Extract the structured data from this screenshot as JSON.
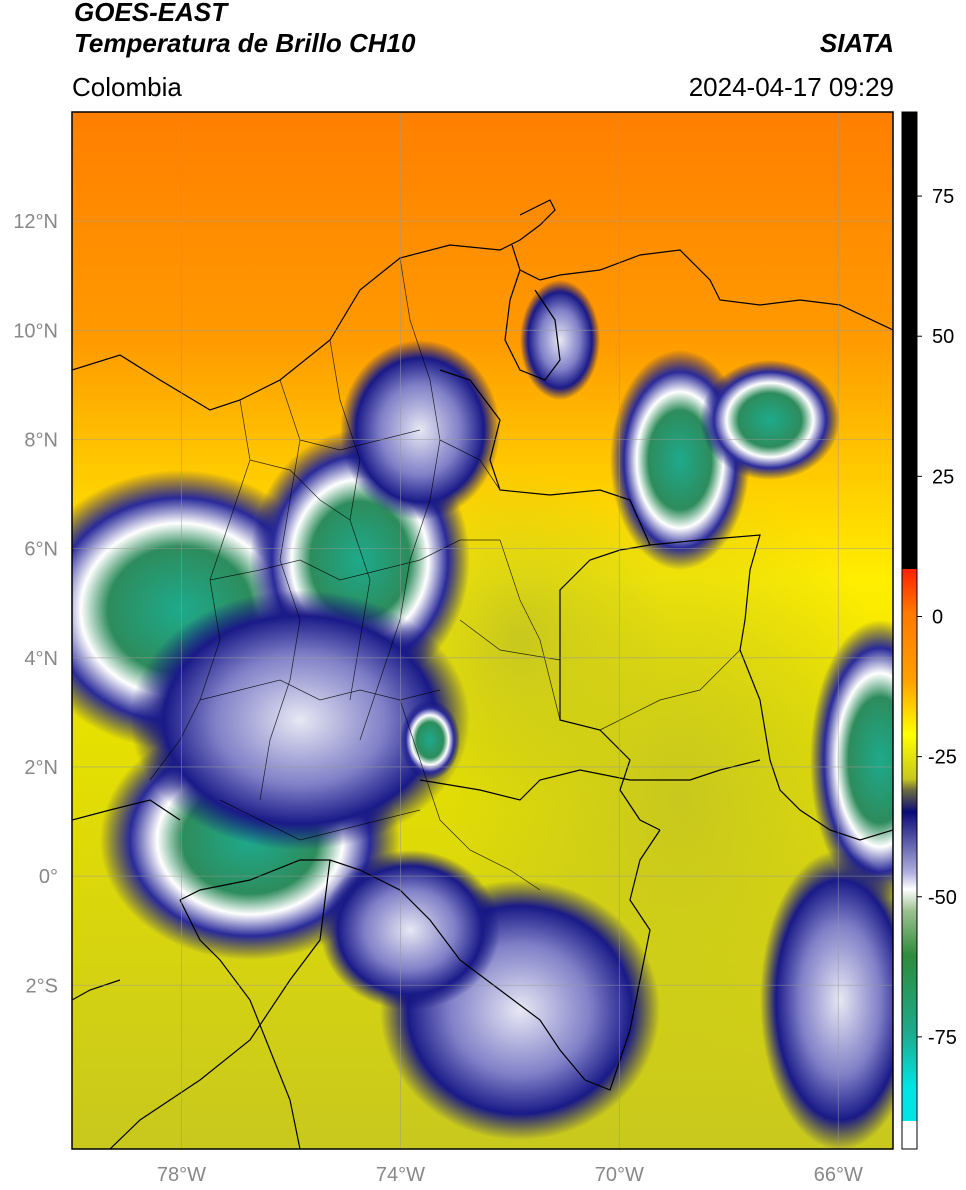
{
  "header": {
    "satellite": "GOES-EAST",
    "product": "Temperatura de Brillo CH10",
    "region": "Colombia",
    "agency": "SIATA",
    "timestamp": "2024-04-17 09:29"
  },
  "map": {
    "lon_range": [
      -80,
      -65
    ],
    "lat_range": [
      -5,
      14
    ],
    "lat_ticks": [
      {
        "value": 12,
        "label": "12°N"
      },
      {
        "value": 10,
        "label": "10°N"
      },
      {
        "value": 8,
        "label": "8°N"
      },
      {
        "value": 6,
        "label": "6°N"
      },
      {
        "value": 4,
        "label": "4°N"
      },
      {
        "value": 2,
        "label": "2°N"
      },
      {
        "value": 0,
        "label": "0°"
      },
      {
        "value": -2,
        "label": "2°S"
      }
    ],
    "lon_ticks": [
      {
        "value": -78,
        "label": "78°W"
      },
      {
        "value": -74,
        "label": "74°W"
      },
      {
        "value": -70,
        "label": "70°W"
      },
      {
        "value": -66,
        "label": "66°W"
      }
    ],
    "grid": true
  },
  "colorbar": {
    "range": [
      -95,
      90
    ],
    "ticks": [
      {
        "value": 75,
        "label": "75"
      },
      {
        "value": 50,
        "label": "50"
      },
      {
        "value": 25,
        "label": "25"
      },
      {
        "value": 0,
        "label": "0"
      },
      {
        "value": -25,
        "label": "-25"
      },
      {
        "value": -50,
        "label": "-50"
      },
      {
        "value": -75,
        "label": "-75"
      }
    ],
    "colors": {
      "warm_top": "#000000",
      "red": "#e8281e",
      "orange": "#ff8c00",
      "yellow": "#ffff00",
      "olive": "#c8c81e",
      "dark_blue": "#0a0a78",
      "white": "#ffffff",
      "green": "#2d8c3c",
      "teal": "#1eaa8c",
      "cyan": "#00e6e6"
    }
  }
}
